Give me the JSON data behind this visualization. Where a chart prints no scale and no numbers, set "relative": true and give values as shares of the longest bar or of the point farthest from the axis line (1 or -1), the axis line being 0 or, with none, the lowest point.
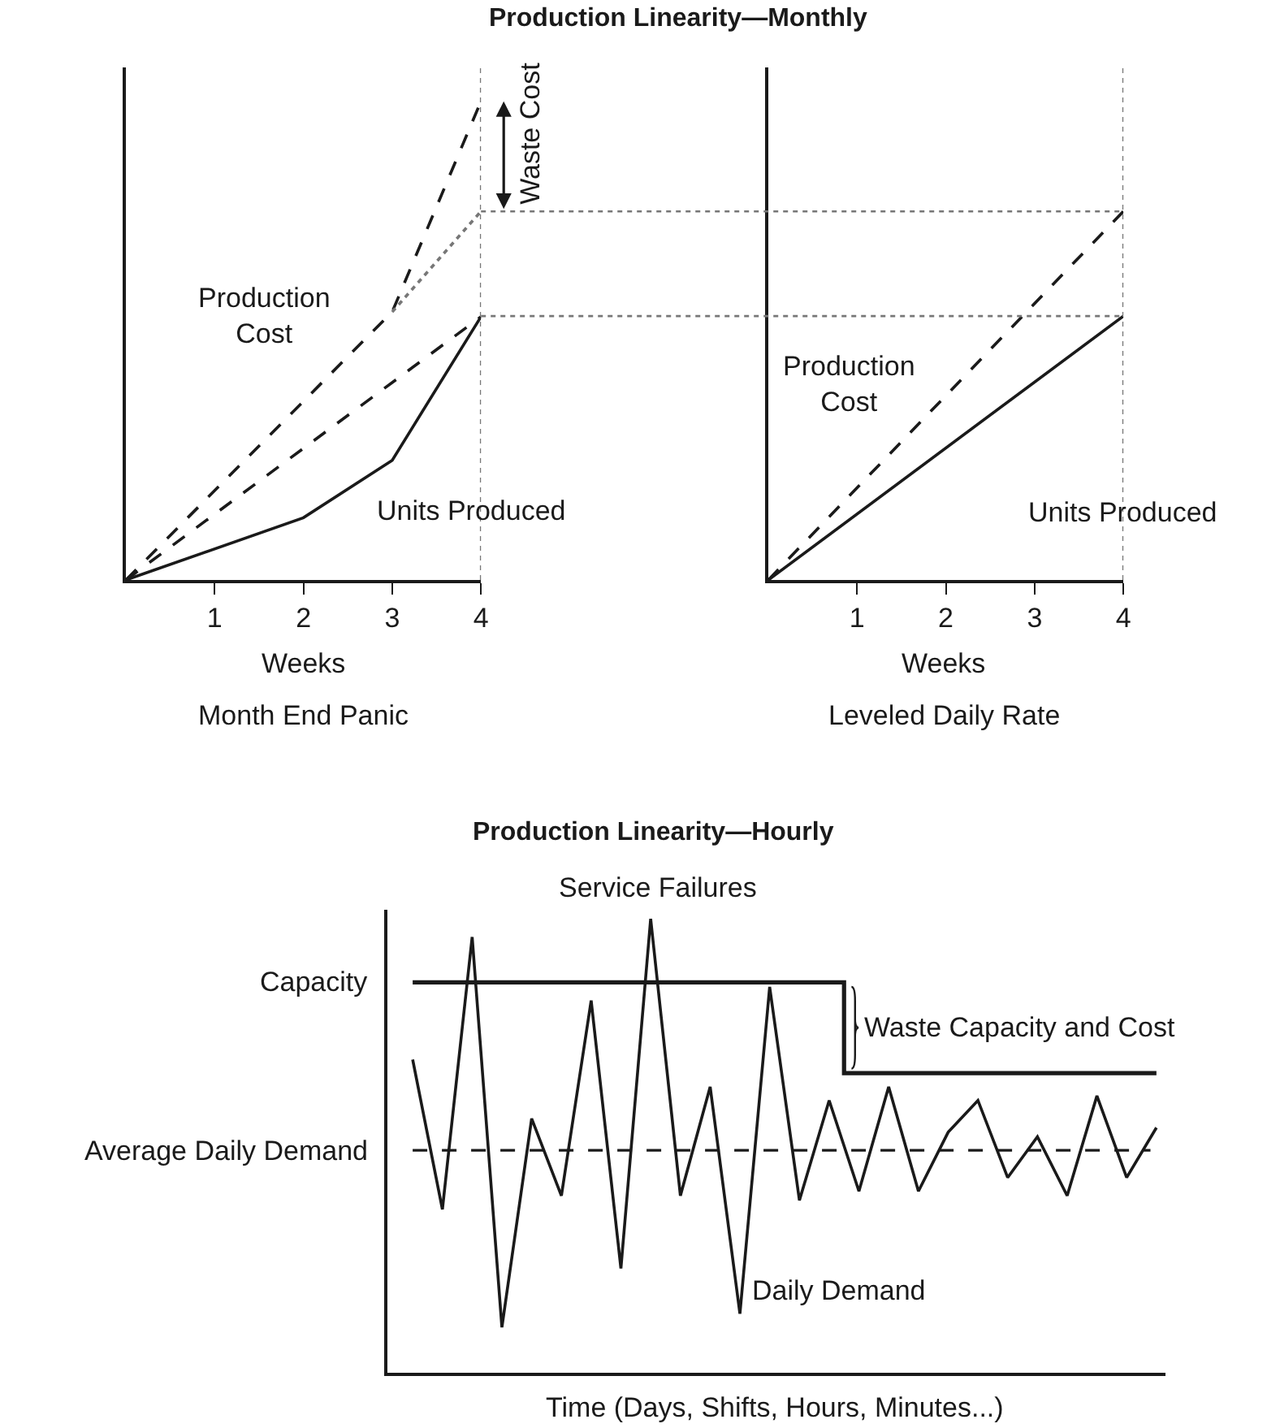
{
  "chart_data": [
    {
      "type": "line",
      "title": "Production Linearity—Monthly",
      "xlabel": "Weeks",
      "relative": true,
      "xlim": [
        0,
        4
      ],
      "xticks": [
        1,
        2,
        3,
        4
      ],
      "tick_labels": "x",
      "series": [
        {
          "x": [
            0,
            2,
            3,
            4
          ],
          "values": [
            0,
            0.13,
            0.25,
            0.55
          ],
          "color": "#1a1a1a",
          "line_style": "solid"
        },
        {
          "x": [
            0,
            3,
            4
          ],
          "values": [
            0,
            0.56,
            1
          ],
          "color": "#1a1a1a",
          "line_style": "dashed"
        },
        {
          "x": [
            0,
            4
          ],
          "values": [
            0,
            0.55
          ],
          "color": "#1a1a1a",
          "line_style": "dashed"
        },
        {
          "x": [
            3,
            4
          ],
          "values": [
            0.56,
            0.77
          ],
          "color": "#777777",
          "line_style": "dotted"
        }
      ],
      "ref_lines": [
        {
          "axis": "x",
          "value": 4,
          "color": "#777777",
          "line_style": "dotted"
        }
      ],
      "annotations": [
        "Month End Panic",
        "Production\nCost",
        "Units Produced",
        "Waste Cost"
      ]
    },
    {
      "type": "line",
      "xlabel": "Weeks",
      "relative": true,
      "xlim": [
        0,
        4
      ],
      "xticks": [
        1,
        2,
        3,
        4
      ],
      "tick_labels": "x",
      "series": [
        {
          "x": [
            0,
            4
          ],
          "values": [
            0,
            0.716
          ],
          "color": "#1a1a1a",
          "line_style": "solid"
        },
        {
          "x": [
            0,
            4
          ],
          "values": [
            0,
            1
          ],
          "color": "#1a1a1a",
          "line_style": "dashed"
        }
      ],
      "ref_lines": [
        {
          "axis": "x",
          "value": 4,
          "color": "#777777",
          "line_style": "dotted"
        },
        {
          "axis": "y",
          "value": 1,
          "color": "#777777",
          "line_style": "dotted"
        },
        {
          "axis": "y",
          "value": 0.716,
          "color": "#777777",
          "line_style": "dotted"
        }
      ],
      "annotations": [
        "Leveled Daily Rate",
        "Production\nCost",
        "Units Produced"
      ]
    },
    {
      "type": "line",
      "title": "Production Linearity—Hourly",
      "xlabel": "Time (Days, Shifts, Hours, Minutes...)",
      "relative": true,
      "tick_labels": false,
      "categories": [
        null,
        null,
        null,
        null,
        null,
        null,
        null,
        null,
        null,
        null,
        null,
        null,
        null,
        null,
        null,
        null,
        null,
        null,
        null,
        null,
        null,
        null,
        null,
        null,
        null,
        null
      ],
      "series": [
        {
          "name": "Capacity",
          "type": "step",
          "color": "#1a1a1a",
          "line_style": "solid",
          "values": [
            0.86,
            0.86,
            0.86,
            0.86,
            0.86,
            0.86,
            0.86,
            0.86,
            0.86,
            0.86,
            0.86,
            0.86,
            0.86,
            0.86,
            0.86,
            0.66,
            0.66,
            0.66,
            0.66,
            0.66,
            0.66,
            0.66,
            0.66,
            0.66,
            0.66,
            0.66
          ]
        },
        {
          "name": "Daily Demand",
          "type": "line",
          "color": "#1a1a1a",
          "line_style": "solid",
          "values": [
            0.69,
            0.36,
            0.96,
            0.1,
            0.56,
            0.39,
            0.82,
            0.23,
            1.0,
            0.39,
            0.63,
            0.13,
            0.85,
            0.38,
            0.6,
            0.4,
            0.63,
            0.4,
            0.53,
            0.6,
            0.43,
            0.52,
            0.39,
            0.61,
            0.43,
            0.54
          ]
        }
      ],
      "ref_lines": [
        {
          "axis": "y",
          "value": 0.49,
          "label": "Average Daily Demand",
          "color": "#1a1a1a",
          "line_style": "dashed"
        }
      ],
      "annotations": [
        "Service Failures",
        "Waste Capacity and Cost"
      ]
    }
  ]
}
